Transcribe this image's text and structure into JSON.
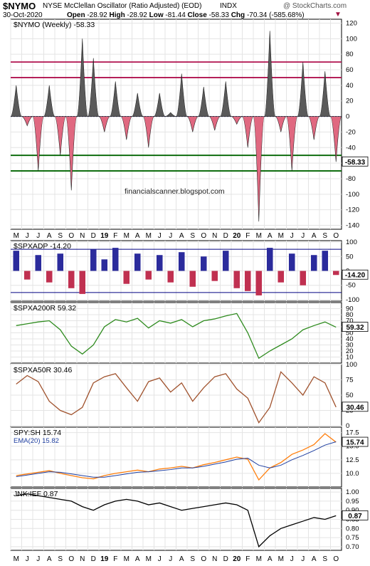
{
  "header": {
    "symbol": "$NYMO",
    "description": "NYSE McClellan Oscillator (Ratio Adjusted) (EOD)",
    "exchange": "INDX",
    "watermark": "@ StockCharts.com",
    "date": "30-Oct-2020",
    "open_label": "Open",
    "open_value": "-28.92",
    "high_label": "High",
    "high_value": "-28.92",
    "low_label": "Low",
    "low_value": "-81.44",
    "close_label": "Close",
    "close_value": "-58.33",
    "chg_label": "Chg",
    "chg_value": "-70.34 (-585.68%)"
  },
  "colors": {
    "positive_fill": "#5a5a5a",
    "negative_fill": "#e06880",
    "maroon_lines": "#b0124f",
    "green_lines": "#006400",
    "blue_lines": "#000080",
    "adp_up": "#2b2b9c",
    "adp_down": "#c03050",
    "spxa200": "#2e8b1e",
    "spxa50": "#a0522d",
    "spy_sh": "#ff7f0e",
    "ema": "#1f3fa0",
    "jnk_ief": "#000000"
  },
  "month_axis": [
    "M",
    "J",
    "J",
    "A",
    "S",
    "O",
    "N",
    "D",
    "19",
    "F",
    "M",
    "A",
    "M",
    "J",
    "J",
    "A",
    "S",
    "O",
    "N",
    "D",
    "20",
    "F",
    "M",
    "A",
    "M",
    "J",
    "J",
    "A",
    "S",
    "O"
  ],
  "annotation": "financialscanner.blogspot.com",
  "chart_data": [
    {
      "type": "area",
      "name": "$NYMO (Weekly)",
      "label": "$NYMO (Weekly) -58.33",
      "last_value": "-58.33",
      "ylim": [
        -145,
        125
      ],
      "y_ticks": [
        120,
        100,
        80,
        60,
        40,
        20,
        0,
        -20,
        -40,
        -60,
        -80,
        -100,
        -120,
        -140
      ],
      "y_tick_labels": [
        "120",
        "100",
        "80",
        "60",
        "40",
        "20",
        "0",
        "-20",
        "-40",
        "-60",
        "-80",
        "-100",
        "-120",
        "-140"
      ],
      "horizontal_lines": [
        70,
        50,
        0,
        -50,
        -70
      ],
      "x": [
        0,
        1,
        2,
        3,
        4,
        5,
        6,
        7,
        8,
        9,
        10,
        11,
        12,
        13,
        14,
        15,
        16,
        17,
        18,
        19,
        20,
        21,
        22,
        23,
        24,
        25,
        26,
        27,
        28,
        29
      ],
      "values": [
        40,
        -12,
        -70,
        40,
        -50,
        -95,
        100,
        75,
        -20,
        45,
        -30,
        30,
        -40,
        30,
        5,
        55,
        -20,
        38,
        -18,
        45,
        -10,
        -40,
        -135,
        110,
        -20,
        -70,
        70,
        -30,
        58,
        -58.33
      ]
    },
    {
      "type": "bar",
      "name": "$SPXADP",
      "label": "$SPXADP -14.20",
      "last_value": "-14.20",
      "ylim": [
        -105,
        105
      ],
      "y_ticks": [
        100,
        50,
        0,
        -50,
        -100
      ],
      "y_tick_labels": [
        "100",
        "50",
        "0",
        "-50",
        "-100"
      ],
      "horizontal_lines": [
        75,
        -75
      ],
      "x": [
        0,
        1,
        2,
        3,
        4,
        5,
        6,
        7,
        8,
        9,
        10,
        11,
        12,
        13,
        14,
        15,
        16,
        17,
        18,
        19,
        20,
        21,
        22,
        23,
        24,
        25,
        26,
        27,
        28,
        29
      ],
      "values": [
        70,
        -30,
        55,
        -40,
        60,
        -60,
        -80,
        75,
        40,
        80,
        -45,
        60,
        -30,
        55,
        -40,
        65,
        -55,
        50,
        -35,
        70,
        -60,
        -70,
        -85,
        80,
        -40,
        60,
        -50,
        55,
        70,
        -14.2
      ]
    },
    {
      "type": "line",
      "name": "$SPXA200R",
      "label": "$SPXA200R 59.32",
      "last_value": "59.32",
      "ylim": [
        0,
        100
      ],
      "y_ticks": [
        90,
        80,
        70,
        60,
        50,
        40,
        30,
        20,
        10
      ],
      "y_tick_labels": [
        "90",
        "80",
        "70",
        "60",
        "50",
        "40",
        "30",
        "20",
        "10"
      ],
      "x": [
        0,
        1,
        2,
        3,
        4,
        5,
        6,
        7,
        8,
        9,
        10,
        11,
        12,
        13,
        14,
        15,
        16,
        17,
        18,
        19,
        20,
        21,
        22,
        23,
        24,
        25,
        26,
        27,
        28,
        29
      ],
      "values": [
        62,
        65,
        68,
        70,
        55,
        28,
        15,
        30,
        60,
        72,
        68,
        74,
        58,
        70,
        66,
        72,
        60,
        70,
        73,
        78,
        82,
        50,
        8,
        20,
        30,
        40,
        55,
        62,
        68,
        59.32
      ]
    },
    {
      "type": "line",
      "name": "$SPXA50R",
      "label": "$SPXA50R 30.46",
      "last_value": "30.46",
      "ylim": [
        0,
        100
      ],
      "y_ticks": [
        100,
        75,
        50,
        25,
        0
      ],
      "y_tick_labels": [
        "100",
        "75",
        "50",
        "25",
        "0"
      ],
      "x": [
        0,
        1,
        2,
        3,
        4,
        5,
        6,
        7,
        8,
        9,
        10,
        11,
        12,
        13,
        14,
        15,
        16,
        17,
        18,
        19,
        20,
        21,
        22,
        23,
        24,
        25,
        26,
        27,
        28,
        29
      ],
      "values": [
        68,
        82,
        72,
        40,
        25,
        18,
        30,
        70,
        80,
        85,
        62,
        40,
        72,
        78,
        55,
        70,
        40,
        62,
        80,
        85,
        60,
        45,
        5,
        30,
        88,
        70,
        50,
        80,
        70,
        30.46
      ]
    },
    {
      "type": "line",
      "name": "SPY:SH",
      "label": "SPY:SH 15.74",
      "last_value": "15.74",
      "ylim": [
        7.5,
        18.5
      ],
      "y_ticks": [
        17.5,
        15,
        12.5,
        10
      ],
      "y_tick_labels": [
        "17.5",
        "15.0",
        "12.5",
        "10.0"
      ],
      "x": [
        0,
        1,
        2,
        3,
        4,
        5,
        6,
        7,
        8,
        9,
        10,
        11,
        12,
        13,
        14,
        15,
        16,
        17,
        18,
        19,
        20,
        21,
        22,
        23,
        24,
        25,
        26,
        27,
        28,
        29
      ],
      "series": [
        {
          "name": "SPY:SH 15.74",
          "values": [
            9.6,
            9.9,
            10.2,
            10.5,
            10.0,
            9.6,
            9.2,
            9.0,
            9.6,
            10.0,
            10.3,
            10.6,
            10.3,
            10.8,
            11.0,
            11.3,
            11.0,
            11.6,
            12.0,
            12.5,
            13.0,
            12.6,
            8.8,
            11.0,
            12.0,
            13.5,
            14.3,
            15.3,
            17.3,
            15.74
          ]
        },
        {
          "name": "EMA(20) 15.82",
          "label": "EMA(20) 15.82",
          "values": [
            9.4,
            9.7,
            10.0,
            10.3,
            10.2,
            9.9,
            9.6,
            9.3,
            9.3,
            9.6,
            9.9,
            10.2,
            10.3,
            10.5,
            10.7,
            11.0,
            11.0,
            11.3,
            11.7,
            12.1,
            12.6,
            12.8,
            11.5,
            11.0,
            11.5,
            12.5,
            13.3,
            14.2,
            15.2,
            15.82
          ]
        }
      ]
    },
    {
      "type": "line",
      "name": "JNK:IEF",
      "label": "JNK:IEF 0.87",
      "last_value": "0.87",
      "ylim": [
        0.68,
        1.02
      ],
      "y_ticks": [
        1.0,
        0.95,
        0.9,
        0.85,
        0.8,
        0.75,
        0.7
      ],
      "y_tick_labels": [
        "1.00",
        "0.95",
        "0.90",
        "0.85",
        "0.80",
        "0.75",
        "0.70"
      ],
      "x": [
        0,
        1,
        2,
        3,
        4,
        5,
        6,
        7,
        8,
        9,
        10,
        11,
        12,
        13,
        14,
        15,
        16,
        17,
        18,
        19,
        20,
        21,
        22,
        23,
        24,
        25,
        26,
        27,
        28,
        29
      ],
      "values": [
        0.98,
        0.99,
        0.98,
        0.97,
        0.96,
        0.95,
        0.92,
        0.9,
        0.93,
        0.95,
        0.96,
        0.95,
        0.93,
        0.94,
        0.92,
        0.9,
        0.91,
        0.92,
        0.93,
        0.94,
        0.93,
        0.9,
        0.7,
        0.76,
        0.8,
        0.82,
        0.84,
        0.86,
        0.85,
        0.87
      ]
    }
  ]
}
